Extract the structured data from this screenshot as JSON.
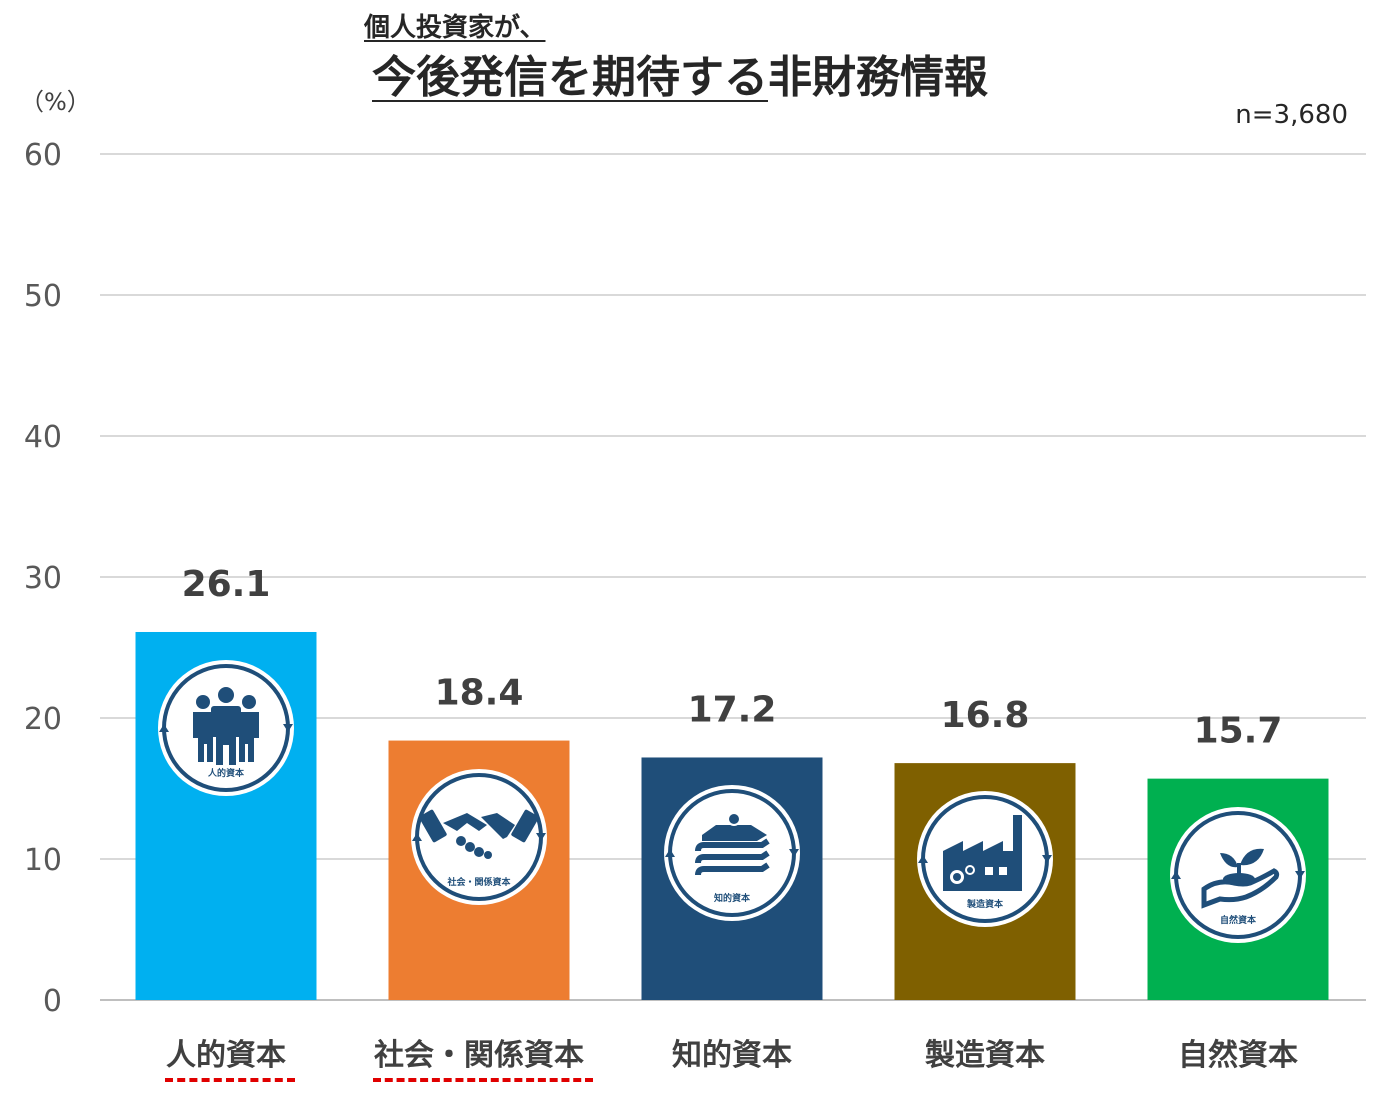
{
  "title": {
    "subtitle": "個人投資家が、",
    "main_underlined": "今後発信を期待する",
    "main_rest": "非財務情報"
  },
  "unit_label": "（%）",
  "sample_size": "n=3,680",
  "chart_data": {
    "type": "bar",
    "categories": [
      "人的資本",
      "社会・関係資本",
      "知的資本",
      "製造資本",
      "自然資本"
    ],
    "values": [
      26.1,
      18.4,
      17.2,
      16.8,
      15.7
    ],
    "value_labels": [
      "26.1",
      "18.4",
      "17.2",
      "16.8",
      "15.7"
    ],
    "colors": [
      "#00b0f0",
      "#ed7d31",
      "#1f4e79",
      "#7f6000",
      "#00b050"
    ],
    "ylim": [
      0,
      60
    ],
    "yticks": [
      0,
      10,
      20,
      30,
      40,
      50,
      60
    ],
    "grid": true,
    "ylabel": "（%）",
    "xlabel": "",
    "icons": [
      {
        "name": "people-icon",
        "caption": "人的資本"
      },
      {
        "name": "handshake-icon",
        "caption": "社会・関係資本"
      },
      {
        "name": "books-lightbulb-icon",
        "caption": "知的資本"
      },
      {
        "name": "factory-icon",
        "caption": "製造資本"
      },
      {
        "name": "plant-in-hand-icon",
        "caption": "自然資本"
      }
    ],
    "emphasized_categories": [
      "人的資本",
      "社会・関係資本"
    ],
    "emphasis_color": "#e00000"
  }
}
